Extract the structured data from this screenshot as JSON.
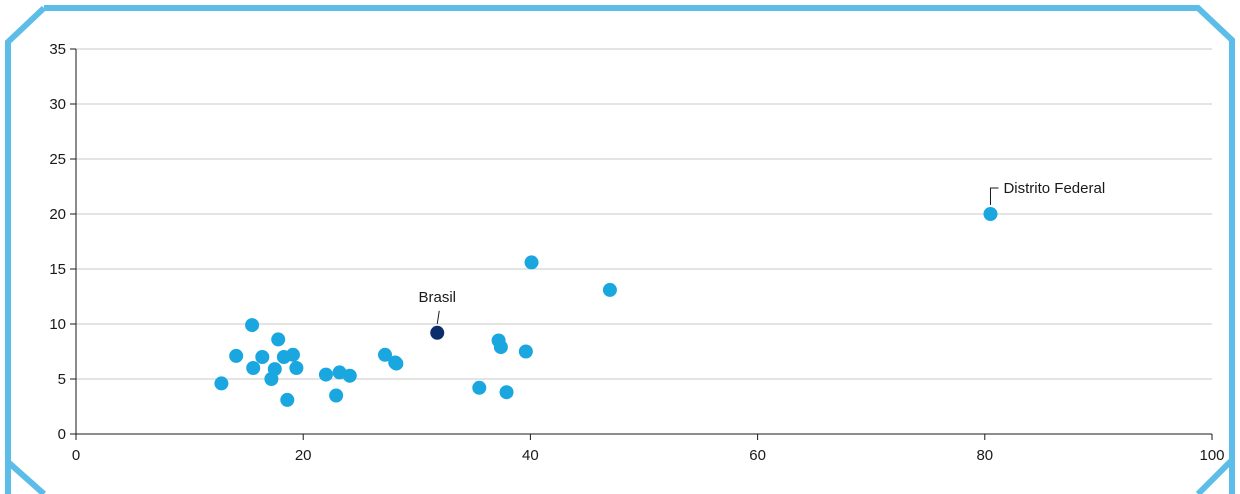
{
  "title": "",
  "chart_data": {
    "type": "scatter",
    "title": "",
    "xlabel": "",
    "ylabel": "",
    "xlim": [
      0,
      100
    ],
    "ylim": [
      0,
      35
    ],
    "xticks": [
      0,
      20,
      40,
      60,
      80,
      100
    ],
    "yticks": [
      0,
      5,
      10,
      15,
      20,
      25,
      30,
      35
    ],
    "grid": "horizontal",
    "series": [
      {
        "color": "#1aa7df",
        "points": [
          {
            "x": 12.8,
            "y": 4.6
          },
          {
            "x": 14.1,
            "y": 7.1
          },
          {
            "x": 15.5,
            "y": 9.9
          },
          {
            "x": 15.6,
            "y": 6.0
          },
          {
            "x": 16.4,
            "y": 7.0
          },
          {
            "x": 17.2,
            "y": 5.0
          },
          {
            "x": 17.5,
            "y": 5.9
          },
          {
            "x": 17.8,
            "y": 8.6
          },
          {
            "x": 18.3,
            "y": 7.0
          },
          {
            "x": 18.6,
            "y": 3.1
          },
          {
            "x": 19.1,
            "y": 7.2
          },
          {
            "x": 19.4,
            "y": 6.0
          },
          {
            "x": 22.0,
            "y": 5.4
          },
          {
            "x": 22.9,
            "y": 3.5
          },
          {
            "x": 23.2,
            "y": 5.6
          },
          {
            "x": 24.1,
            "y": 5.3
          },
          {
            "x": 27.2,
            "y": 7.2
          },
          {
            "x": 28.1,
            "y": 6.5
          },
          {
            "x": 28.2,
            "y": 6.4
          },
          {
            "x": 35.5,
            "y": 4.2
          },
          {
            "x": 37.2,
            "y": 8.5
          },
          {
            "x": 37.4,
            "y": 7.9
          },
          {
            "x": 37.9,
            "y": 3.8
          },
          {
            "x": 39.6,
            "y": 7.5
          },
          {
            "x": 40.1,
            "y": 15.6
          },
          {
            "x": 47.0,
            "y": 13.1
          },
          {
            "x": 80.5,
            "y": 20.0,
            "label": "Distrito Federal"
          }
        ]
      },
      {
        "color": "#0b2d6b",
        "points": [
          {
            "x": 31.8,
            "y": 9.2,
            "label": "Brasil"
          }
        ]
      }
    ]
  },
  "colors": {
    "frame": "#5bbde8",
    "grid": "#c8c8c8",
    "axis": "#1a1a1a",
    "point": "#1aa7df",
    "highlight": "#0b2d6b",
    "title": "#1a3c6e"
  }
}
